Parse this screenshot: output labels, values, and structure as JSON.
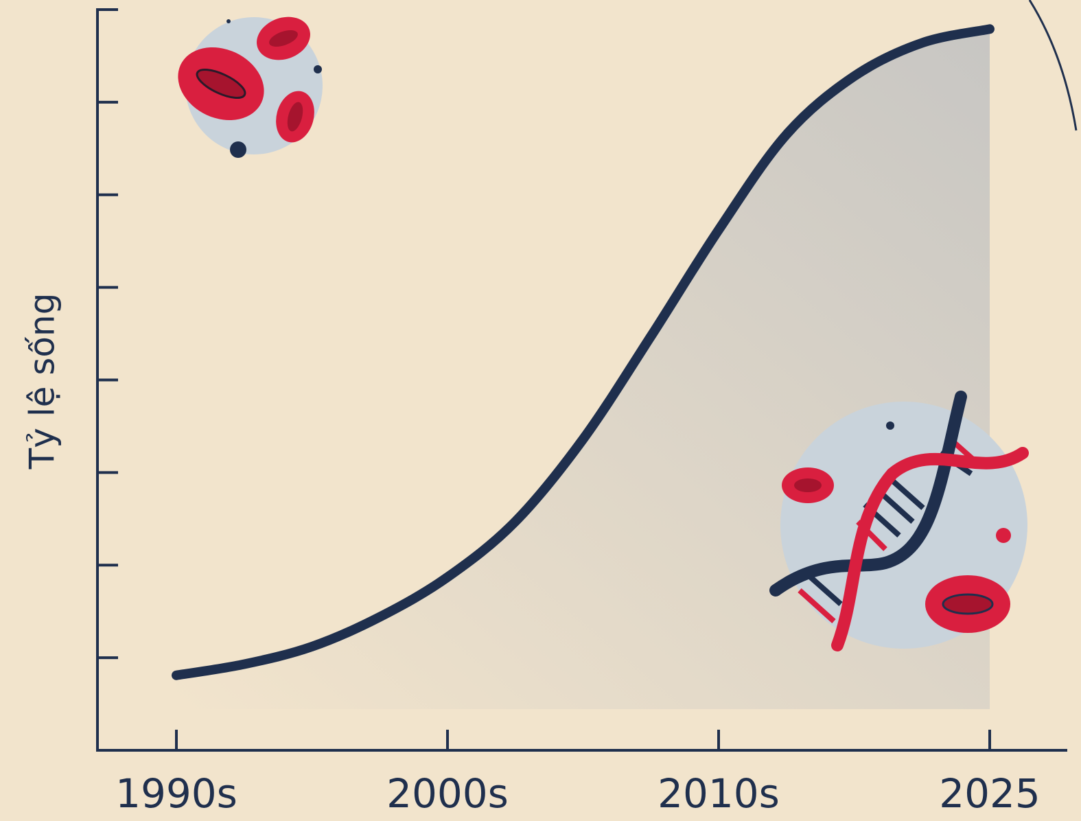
{
  "chart_data": {
    "type": "line",
    "y_label": "Tỷ lệ sống",
    "categories": [
      "1990s",
      null,
      null,
      null,
      "2000s",
      null,
      null,
      null,
      "2010s",
      null,
      null,
      null,
      "2025"
    ],
    "series": [
      {
        "color": "#1f2f4d",
        "values": [
          0.81,
          0.93,
          1.12,
          1.44,
          1.87,
          2.47,
          3.36,
          4.47,
          5.62,
          6.65,
          7.28,
          7.64,
          7.79
        ]
      }
    ],
    "ylim": [
      0,
      8
    ],
    "yticks": [
      1,
      2,
      3,
      4,
      5,
      6,
      7
    ]
  }
}
